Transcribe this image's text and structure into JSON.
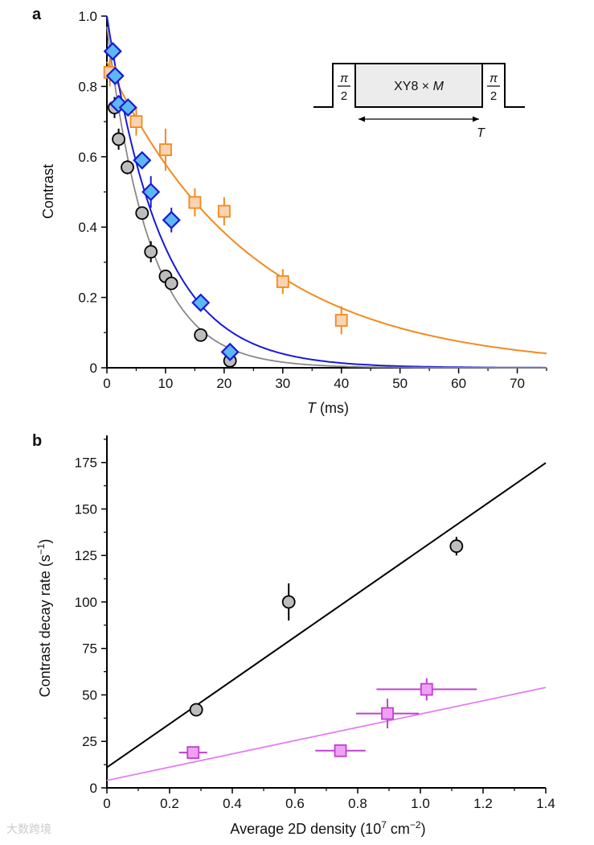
{
  "chart_data": [
    {
      "panel": "a",
      "type": "scatter",
      "xlabel_italic": "T",
      "xlabel_rest": " (ms)",
      "ylabel": "Contrast",
      "xlim": [
        0,
        75
      ],
      "ylim": [
        0,
        1.0
      ],
      "xticks": [
        0,
        10,
        20,
        30,
        40,
        50,
        60,
        70
      ],
      "yticks": [
        0,
        0.2,
        0.4,
        0.6,
        0.8,
        1.0
      ],
      "ytick_labels": [
        "0",
        "0.2",
        "0.4",
        "0.6",
        "0.8",
        "1.0"
      ],
      "grid": false,
      "series": [
        {
          "name": "orange squares",
          "marker": "square",
          "color": "#f28a1e",
          "fill": "#fbd3b0",
          "x": [
            0.5,
            5,
            10,
            15,
            20,
            30,
            40
          ],
          "y": [
            0.84,
            0.7,
            0.62,
            0.47,
            0.445,
            0.245,
            0.135
          ],
          "yerr": [
            0.04,
            0.04,
            0.06,
            0.04,
            0.04,
            0.035,
            0.04
          ],
          "fit": {
            "A": 0.87,
            "tau": 24.5
          }
        },
        {
          "name": "blue diamonds",
          "marker": "diamond",
          "color": "#1a1ad8",
          "fill": "#5bb8f0",
          "x": [
            1,
            1.4,
            2,
            3.6,
            6,
            7.5,
            11,
            16,
            21
          ],
          "y": [
            0.9,
            0.83,
            0.75,
            0.74,
            0.59,
            0.5,
            0.42,
            0.185,
            0.045
          ],
          "yerr": [
            0,
            0,
            0,
            0,
            0,
            0.045,
            0.035,
            0,
            0
          ],
          "fit": {
            "A": 1.0,
            "tau": 9.3
          }
        },
        {
          "name": "gray circles",
          "marker": "circle",
          "color": "#888888",
          "fill": "#bdbdbd",
          "x": [
            1.3,
            2,
            3.5,
            6,
            7.5,
            10,
            11,
            16,
            21
          ],
          "y": [
            0.74,
            0.65,
            0.57,
            0.44,
            0.33,
            0.26,
            0.24,
            0.093,
            0.02
          ],
          "yerr": [
            0.03,
            0.03,
            0.02,
            0,
            0.03,
            0,
            0,
            0,
            0
          ],
          "fit": {
            "A": 0.97,
            "tau": 7.3
          }
        }
      ],
      "inset": {
        "pulse_num": "π",
        "pulse_den": "2",
        "block": "XY8 × ",
        "block_italic": "M",
        "arrow_label": "T"
      }
    },
    {
      "panel": "b",
      "type": "scatter",
      "xlabel": "Average 2D density (10",
      "xlabel_sup": "7",
      "xlabel_unit": " cm",
      "xlabel_sup2": "−2",
      "xlabel_end": ")",
      "ylabel": "Contrast decay rate (s",
      "ylabel_sup": "−1",
      "ylabel_end": ")",
      "xlim": [
        0,
        1.4
      ],
      "ylim": [
        0,
        187
      ],
      "xticks": [
        0,
        0.2,
        0.4,
        0.6,
        0.8,
        1.0,
        1.2,
        1.4
      ],
      "xtick_labels": [
        "0",
        "0.2",
        "0.4",
        "0.6",
        "0.8",
        "1.0",
        "1.2",
        "1.4"
      ],
      "yticks": [
        0,
        25,
        50,
        75,
        100,
        125,
        150,
        175
      ],
      "grid": false,
      "series": [
        {
          "name": "gray circles",
          "marker": "circle",
          "color": "#000000",
          "fill": "#bdbdbd",
          "x": [
            0.285,
            0.58,
            1.115
          ],
          "y": [
            42,
            100,
            130
          ],
          "xerr": [
            0,
            0,
            0
          ],
          "yerr": [
            0,
            10,
            5
          ],
          "fit": {
            "intercept": 11,
            "slope": 117
          }
        },
        {
          "name": "magenta squares",
          "marker": "square",
          "color": "#c040d0",
          "fill": "#f0a0f5",
          "line": "#e080f0",
          "x": [
            0.275,
            0.745,
            0.895,
            1.02
          ],
          "y": [
            19,
            20,
            40,
            53
          ],
          "xerr": [
            0.045,
            0.08,
            0.1,
            0.16
          ],
          "yerr": [
            0,
            0,
            8,
            6
          ],
          "fit": {
            "intercept": 4,
            "slope": 35.7
          }
        }
      ]
    }
  ],
  "watermark": "大数跨境"
}
